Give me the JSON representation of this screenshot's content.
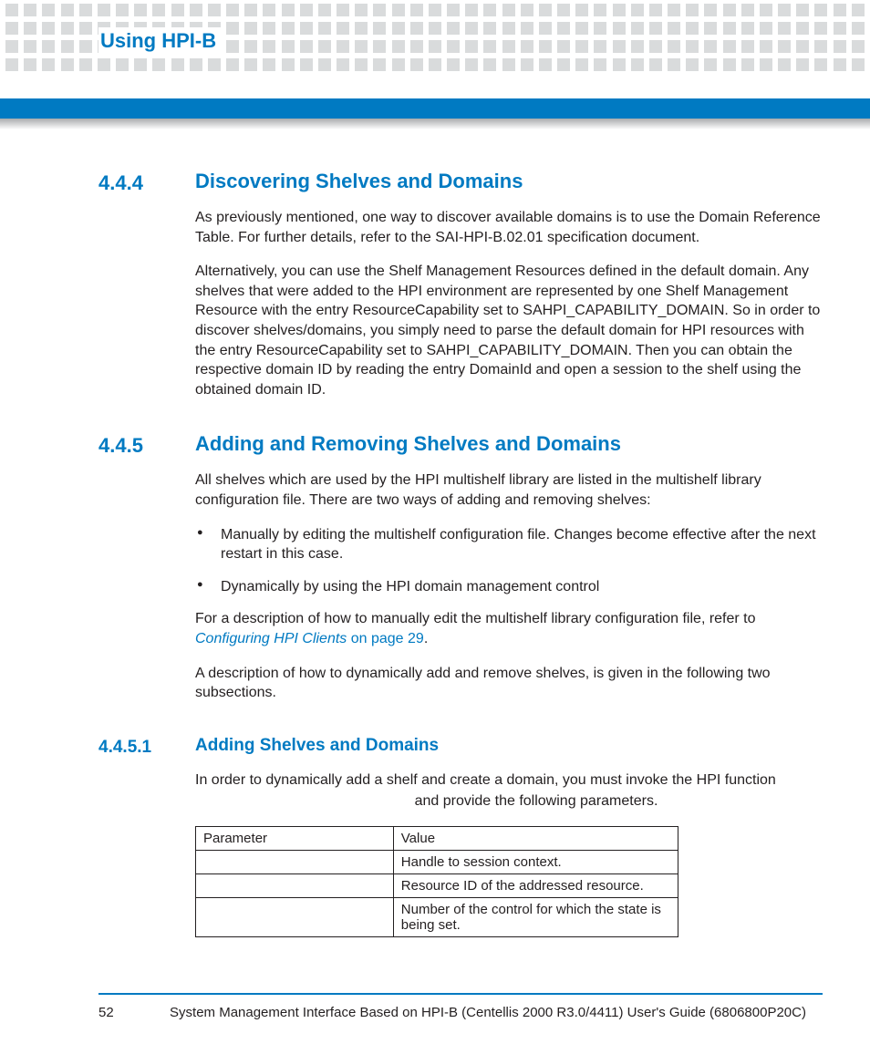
{
  "header": {
    "running_title": "Using HPI-B"
  },
  "colors": {
    "accent": "#007ac2",
    "dot": "#d9dbdc",
    "text": "#231f20",
    "background": "#ffffff"
  },
  "sections": {
    "s444": {
      "num": "4.4.4",
      "title": "Discovering Shelves and Domains",
      "p1": "As previously mentioned, one way to discover available domains is to use the Domain Reference Table. For further details, refer to the SAI-HPI-B.02.01 specification document.",
      "p2": "Alternatively, you can use the Shelf Management Resources defined in the default domain. Any shelves that were added to the HPI environment are represented by one Shelf Management Resource with the entry ResourceCapability set to SAHPI_CAPABILITY_DOMAIN. So in order to discover shelves/domains, you simply need to parse the default domain for HPI resources with the entry ResourceCapability set to SAHPI_CAPABILITY_DOMAIN. Then you can obtain the respective domain ID by reading the entry DomainId and open a session to the shelf using the obtained domain ID."
    },
    "s445": {
      "num": "4.4.5",
      "title": "Adding and Removing Shelves and Domains",
      "p1": "All shelves which are used by the HPI multishelf library are listed in the multishelf library configuration file. There are two ways of adding and removing shelves:",
      "b1": "Manually by editing the multishelf configuration file. Changes become effective after the next restart in this case.",
      "b2": "Dynamically by using the HPI domain management control",
      "p2_pre": "For a description of how to manually edit the multishelf library configuration file, refer to ",
      "p2_link": "Configuring HPI Clients",
      "p2_link_rest": " on page 29",
      "p2_post": ".",
      "p3": "A description of how to dynamically add and remove shelves, is given in the following two subsections."
    },
    "s4451": {
      "num": "4.4.5.1",
      "title": "Adding Shelves and Domains",
      "p1": "In order to dynamically add a shelf and create a domain, you must invoke the HPI function",
      "p1b": "and provide the following parameters."
    }
  },
  "table": {
    "headers": {
      "c1": "Parameter",
      "c2": "Value"
    },
    "rows": [
      {
        "param": "",
        "value": "Handle to session context."
      },
      {
        "param": "",
        "value": "Resource ID of the addressed resource."
      },
      {
        "param": "",
        "value": "Number of the control for which the state is being set."
      }
    ]
  },
  "footer": {
    "page": "52",
    "text": "System Management Interface Based on HPI-B (Centellis 2000 R3.0/4411) User's Guide (6806800P20C)"
  }
}
